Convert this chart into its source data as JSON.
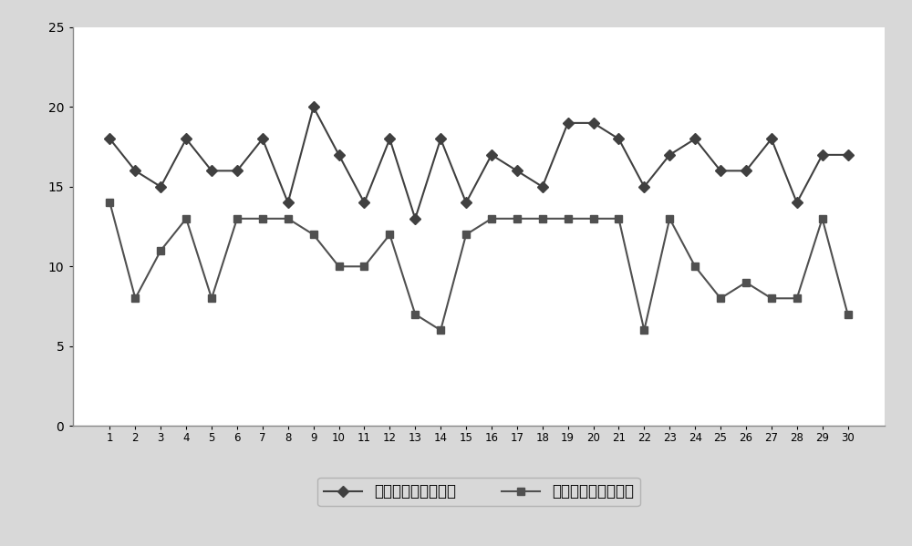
{
  "x": [
    1,
    2,
    3,
    4,
    5,
    6,
    7,
    8,
    9,
    10,
    11,
    12,
    13,
    14,
    15,
    16,
    17,
    18,
    19,
    20,
    21,
    22,
    23,
    24,
    25,
    26,
    27,
    28,
    29,
    30
  ],
  "series1": [
    18,
    16,
    15,
    18,
    16,
    16,
    18,
    14,
    20,
    17,
    14,
    18,
    13,
    18,
    14,
    17,
    16,
    15,
    19,
    19,
    18,
    15,
    17,
    18,
    16,
    16,
    18,
    14,
    17,
    17
  ],
  "series2": [
    14,
    8,
    11,
    13,
    8,
    13,
    13,
    13,
    12,
    10,
    10,
    12,
    7,
    6,
    12,
    13,
    13,
    13,
    13,
    13,
    13,
    6,
    13,
    10,
    8,
    9,
    8,
    8,
    13,
    7
  ],
  "series1_label": "试验组夜间盗汗分値",
  "series2_label": "对照组夜间盗汗分値",
  "ylim": [
    0,
    25
  ],
  "yticks": [
    0,
    5,
    10,
    15,
    20,
    25
  ],
  "bg_color": "#ffffff",
  "outer_bg": "#d8d8d8",
  "line1_color": "#404040",
  "line2_color": "#505050",
  "marker1": "D",
  "marker2": "s",
  "linewidth": 1.5,
  "markersize": 6,
  "tick_fontsize": 10,
  "legend_fontsize": 12
}
